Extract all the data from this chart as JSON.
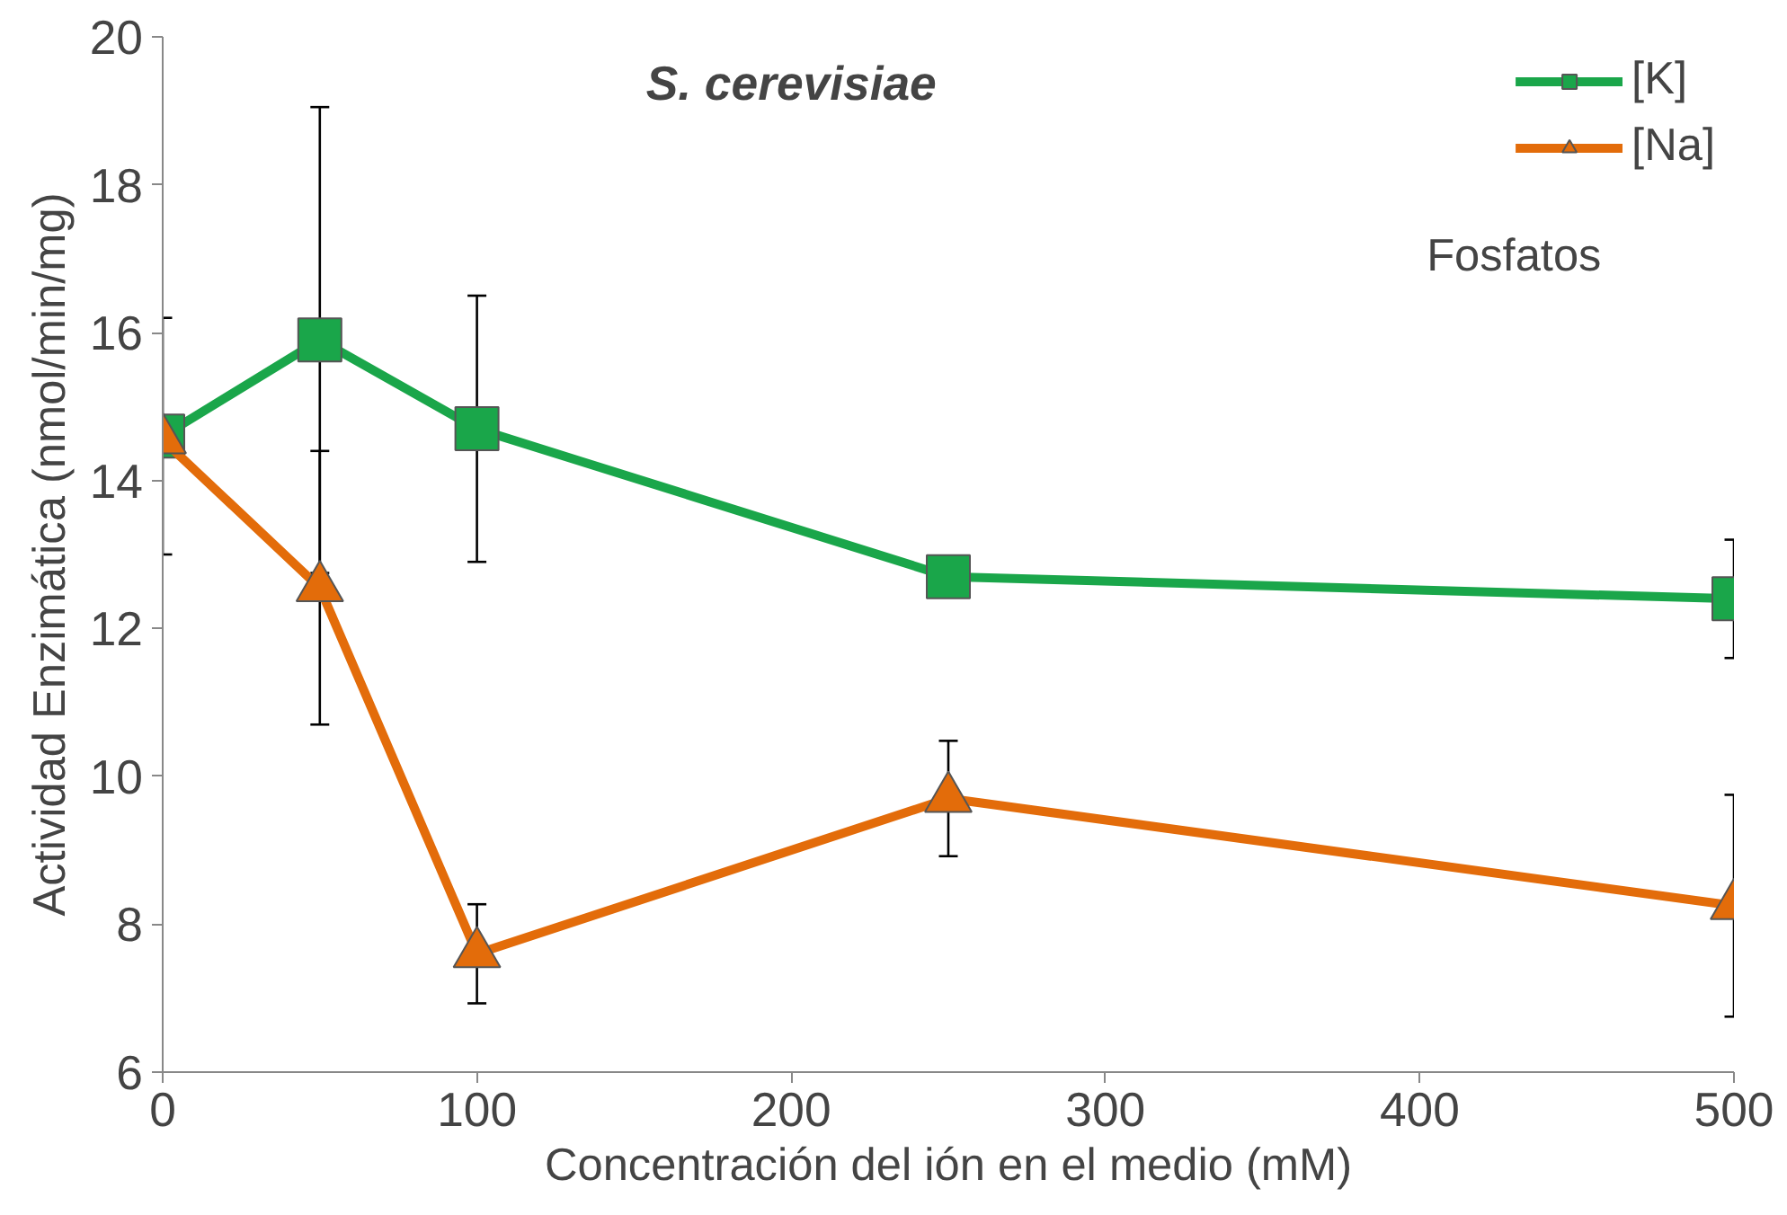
{
  "chart_data": {
    "type": "line",
    "title": "S. cerevisiae",
    "xlabel": "Concentración del ión en el medio (mM)",
    "ylabel": "Actividad Enzimática (nmol/min/mg)",
    "x": [
      0,
      50,
      100,
      250,
      500
    ],
    "series": [
      {
        "name": "[K]",
        "color": "#1aa64a",
        "values": [
          14.6,
          15.9,
          14.7,
          12.7,
          12.4
        ],
        "errors": [
          1.6,
          3.15,
          1.8,
          null,
          0.8
        ],
        "marker": "square"
      },
      {
        "name": "[Na]",
        "color": "#e36c0a",
        "values": [
          14.55,
          12.55,
          7.6,
          9.7,
          8.25
        ],
        "errors": [
          null,
          1.85,
          0.67,
          0.78,
          1.5
        ],
        "marker": "triangle"
      }
    ],
    "xlim": [
      0,
      500
    ],
    "ylim": [
      6,
      20
    ],
    "xticks": [
      0,
      100,
      200,
      300,
      400,
      500
    ],
    "yticks": [
      6,
      8,
      10,
      12,
      14,
      16,
      18,
      20
    ],
    "grid": false,
    "legend": "top right",
    "annotations": [
      "Fosfatos"
    ]
  }
}
